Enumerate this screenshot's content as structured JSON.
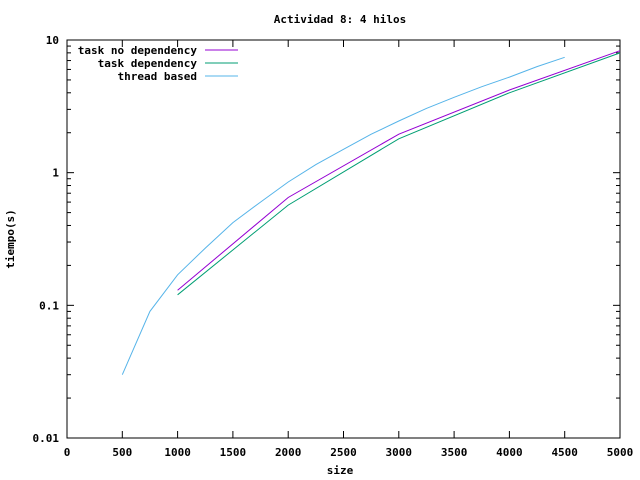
{
  "chart_data": {
    "type": "line",
    "title": "Actividad 8: 4 hilos",
    "xlabel": "size",
    "ylabel": "tiempo(s)",
    "xlim": [
      0,
      5000
    ],
    "ylim": [
      0.01,
      10
    ],
    "yscale": "log",
    "grid": false,
    "legend_position": "top-left",
    "xticks": [
      0,
      500,
      1000,
      1500,
      2000,
      2500,
      3000,
      3500,
      4000,
      4500,
      5000
    ],
    "xtick_labels": [
      "0",
      "500",
      "1000",
      "1500",
      "2000",
      "2500",
      "3000",
      "3500",
      "4000",
      "4500",
      "5000"
    ],
    "yticks": [
      0.01,
      0.1,
      1,
      10
    ],
    "ytick_labels": [
      "0.01",
      "0.1",
      "1",
      "10"
    ],
    "series": [
      {
        "name": "task no dependency",
        "color": "#9400d3",
        "x": [
          1000,
          2000,
          3000,
          4000,
          5000
        ],
        "y": [
          0.13,
          0.65,
          1.95,
          4.2,
          8.3
        ]
      },
      {
        "name": "task dependency",
        "color": "#009e73",
        "x": [
          1000,
          2000,
          3000,
          4000,
          5000
        ],
        "y": [
          0.12,
          0.57,
          1.8,
          4.0,
          8.0
        ]
      },
      {
        "name": "thread based",
        "color": "#56b4e9",
        "x": [
          500,
          750,
          1000,
          1250,
          1500,
          1750,
          2000,
          2250,
          2500,
          2750,
          3000,
          3250,
          3500,
          3750,
          4000,
          4250,
          4500
        ],
        "y": [
          0.03,
          0.09,
          0.17,
          0.27,
          0.42,
          0.6,
          0.85,
          1.15,
          1.5,
          1.95,
          2.45,
          3.05,
          3.7,
          4.45,
          5.25,
          6.3,
          7.4
        ]
      }
    ]
  }
}
